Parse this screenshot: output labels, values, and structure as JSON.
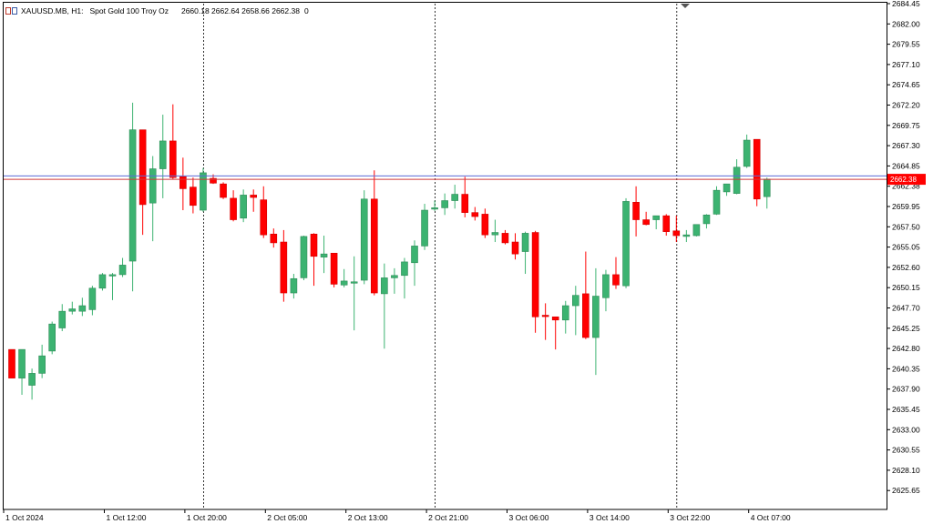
{
  "header": {
    "symbol": "XAUUSD.MB, H1:",
    "description": "Spot Gold 100 Troy Oz",
    "ohlc": "2660.18 2662.64 2658.66 2662.38",
    "volume": "0"
  },
  "colors": {
    "bull": "#3cb371",
    "bear": "#ff0000",
    "wick_bull": "#3cb371",
    "wick_bear": "#ff0000",
    "bid_line": "#d13a3a",
    "ask_line": "#5b6bd6",
    "price_tag_bg": "#ff0000",
    "period_sep": "#000000",
    "axis": "#000000"
  },
  "chart_data": {
    "type": "candlestick",
    "timeframe": "H1",
    "y_ticks": [
      "2684.45",
      "2682.00",
      "2679.55",
      "2677.10",
      "2674.65",
      "2672.20",
      "2669.75",
      "2667.30",
      "2664.85",
      "2662.38",
      "2659.95",
      "2657.50",
      "2655.05",
      "2652.60",
      "2650.15",
      "2647.70",
      "2645.25",
      "2642.80",
      "2640.35",
      "2637.90",
      "2635.45",
      "2633.00",
      "2630.55",
      "2628.10",
      "2625.65"
    ],
    "ylim": [
      2623.3,
      2684.45
    ],
    "x_labels": [
      "1 Oct 2024",
      "1 Oct 12:00",
      "1 Oct 20:00",
      "2 Oct 05:00",
      "2 Oct 13:00",
      "2 Oct 21:00",
      "3 Oct 06:00",
      "3 Oct 14:00",
      "3 Oct 22:00",
      "4 Oct 07:00"
    ],
    "x_label_candle_index": [
      0,
      10,
      18,
      26,
      34,
      42,
      50,
      58,
      66,
      74
    ],
    "period_separator_candle_index": [
      19,
      42,
      66
    ],
    "current_price": "2662.38",
    "bid": 2662.38,
    "ask": 2662.8,
    "candles": [
      {
        "o": 2641.0,
        "h": 2641.0,
        "l": 2637.4,
        "c": 2637.4
      },
      {
        "o": 2637.4,
        "h": 2641.0,
        "l": 2635.3,
        "c": 2641.0
      },
      {
        "o": 2636.5,
        "h": 2638.6,
        "l": 2634.7,
        "c": 2638.0
      },
      {
        "o": 2638.0,
        "h": 2641.6,
        "l": 2637.4,
        "c": 2640.2
      },
      {
        "o": 2640.8,
        "h": 2644.5,
        "l": 2640.4,
        "c": 2644.2
      },
      {
        "o": 2643.7,
        "h": 2646.7,
        "l": 2643.3,
        "c": 2645.8
      },
      {
        "o": 2645.8,
        "h": 2647.0,
        "l": 2645.4,
        "c": 2646.1
      },
      {
        "o": 2645.8,
        "h": 2647.5,
        "l": 2645.2,
        "c": 2646.5
      },
      {
        "o": 2646.0,
        "h": 2649.0,
        "l": 2645.3,
        "c": 2648.7
      },
      {
        "o": 2648.7,
        "h": 2650.6,
        "l": 2648.4,
        "c": 2650.4
      },
      {
        "o": 2650.4,
        "h": 2650.6,
        "l": 2647.2,
        "c": 2650.4
      },
      {
        "o": 2650.4,
        "h": 2652.5,
        "l": 2650.1,
        "c": 2651.6
      },
      {
        "o": 2652.1,
        "h": 2672.0,
        "l": 2648.3,
        "c": 2668.6
      },
      {
        "o": 2668.6,
        "h": 2668.6,
        "l": 2655.4,
        "c": 2659.2
      },
      {
        "o": 2659.4,
        "h": 2665.3,
        "l": 2654.6,
        "c": 2663.7
      },
      {
        "o": 2663.7,
        "h": 2670.5,
        "l": 2660.0,
        "c": 2667.2
      },
      {
        "o": 2667.2,
        "h": 2671.8,
        "l": 2662.4,
        "c": 2662.6
      },
      {
        "o": 2662.7,
        "h": 2665.1,
        "l": 2658.5,
        "c": 2661.2
      },
      {
        "o": 2661.4,
        "h": 2662.6,
        "l": 2658.1,
        "c": 2659.1
      },
      {
        "o": 2658.5,
        "h": 2663.8,
        "l": 2658.3,
        "c": 2663.2
      },
      {
        "o": 2662.5,
        "h": 2663.0,
        "l": 2661.8,
        "c": 2661.9
      },
      {
        "o": 2661.8,
        "h": 2662.0,
        "l": 2659.9,
        "c": 2660.1
      },
      {
        "o": 2660.0,
        "h": 2661.0,
        "l": 2657.1,
        "c": 2657.3
      },
      {
        "o": 2657.5,
        "h": 2661.1,
        "l": 2657.0,
        "c": 2660.4
      },
      {
        "o": 2660.4,
        "h": 2661.1,
        "l": 2658.3,
        "c": 2660.1
      },
      {
        "o": 2659.8,
        "h": 2661.5,
        "l": 2655.0,
        "c": 2655.4
      },
      {
        "o": 2655.5,
        "h": 2656.2,
        "l": 2653.8,
        "c": 2654.4
      },
      {
        "o": 2654.5,
        "h": 2656.0,
        "l": 2647.0,
        "c": 2648.1
      },
      {
        "o": 2648.1,
        "h": 2650.5,
        "l": 2647.4,
        "c": 2649.9
      },
      {
        "o": 2650.0,
        "h": 2655.3,
        "l": 2649.7,
        "c": 2655.2
      },
      {
        "o": 2655.5,
        "h": 2655.6,
        "l": 2649.0,
        "c": 2652.7
      },
      {
        "o": 2652.6,
        "h": 2655.3,
        "l": 2650.6,
        "c": 2653.0
      },
      {
        "o": 2653.1,
        "h": 2653.1,
        "l": 2648.8,
        "c": 2649.2
      },
      {
        "o": 2649.1,
        "h": 2651.1,
        "l": 2648.8,
        "c": 2649.6
      },
      {
        "o": 2649.5,
        "h": 2652.7,
        "l": 2643.4,
        "c": 2649.5
      },
      {
        "o": 2649.7,
        "h": 2661.0,
        "l": 2649.2,
        "c": 2659.9
      },
      {
        "o": 2659.9,
        "h": 2663.5,
        "l": 2647.8,
        "c": 2648.1
      },
      {
        "o": 2648.0,
        "h": 2651.8,
        "l": 2641.1,
        "c": 2650.0
      },
      {
        "o": 2650.0,
        "h": 2651.2,
        "l": 2648.0,
        "c": 2650.3
      },
      {
        "o": 2650.3,
        "h": 2652.5,
        "l": 2647.4,
        "c": 2652.0
      },
      {
        "o": 2651.9,
        "h": 2654.7,
        "l": 2649.0,
        "c": 2654.0
      },
      {
        "o": 2654.0,
        "h": 2659.3,
        "l": 2653.5,
        "c": 2658.5
      },
      {
        "o": 2658.8,
        "h": 2659.7,
        "l": 2658.4,
        "c": 2658.8
      },
      {
        "o": 2658.8,
        "h": 2660.6,
        "l": 2657.9,
        "c": 2659.7
      },
      {
        "o": 2659.7,
        "h": 2661.7,
        "l": 2658.7,
        "c": 2660.5
      },
      {
        "o": 2660.5,
        "h": 2662.7,
        "l": 2657.6,
        "c": 2658.2
      },
      {
        "o": 2658.2,
        "h": 2658.9,
        "l": 2657.2,
        "c": 2657.7
      },
      {
        "o": 2658.0,
        "h": 2658.7,
        "l": 2655.0,
        "c": 2655.4
      },
      {
        "o": 2655.4,
        "h": 2657.3,
        "l": 2654.5,
        "c": 2655.7
      },
      {
        "o": 2655.6,
        "h": 2656.0,
        "l": 2654.2,
        "c": 2654.4
      },
      {
        "o": 2654.5,
        "h": 2655.6,
        "l": 2652.3,
        "c": 2653.0
      },
      {
        "o": 2653.3,
        "h": 2655.8,
        "l": 2650.5,
        "c": 2655.6
      },
      {
        "o": 2655.7,
        "h": 2655.9,
        "l": 2643.1,
        "c": 2645.1
      },
      {
        "o": 2645.3,
        "h": 2646.8,
        "l": 2642.2,
        "c": 2645.2
      },
      {
        "o": 2645.1,
        "h": 2645.1,
        "l": 2641.0,
        "c": 2644.7
      },
      {
        "o": 2644.7,
        "h": 2647.1,
        "l": 2643.0,
        "c": 2646.5
      },
      {
        "o": 2646.5,
        "h": 2649.0,
        "l": 2642.8,
        "c": 2647.8
      },
      {
        "o": 2648.0,
        "h": 2653.3,
        "l": 2642.3,
        "c": 2642.5
      },
      {
        "o": 2642.5,
        "h": 2651.2,
        "l": 2637.8,
        "c": 2647.7
      },
      {
        "o": 2647.5,
        "h": 2651.0,
        "l": 2645.8,
        "c": 2650.4
      },
      {
        "o": 2650.4,
        "h": 2652.6,
        "l": 2648.6,
        "c": 2649.1
      },
      {
        "o": 2649.0,
        "h": 2660.0,
        "l": 2648.7,
        "c": 2659.6
      },
      {
        "o": 2659.5,
        "h": 2661.5,
        "l": 2655.2,
        "c": 2657.3
      },
      {
        "o": 2657.3,
        "h": 2658.3,
        "l": 2656.6,
        "c": 2656.7
      },
      {
        "o": 2657.3,
        "h": 2657.8,
        "l": 2656.1,
        "c": 2657.8
      },
      {
        "o": 2657.8,
        "h": 2658.0,
        "l": 2655.3,
        "c": 2655.8
      },
      {
        "o": 2655.9,
        "h": 2657.8,
        "l": 2654.5,
        "c": 2655.3
      },
      {
        "o": 2655.2,
        "h": 2656.0,
        "l": 2654.5,
        "c": 2655.4
      },
      {
        "o": 2655.3,
        "h": 2656.7,
        "l": 2655.2,
        "c": 2656.7
      },
      {
        "o": 2656.8,
        "h": 2658.0,
        "l": 2656.2,
        "c": 2657.9
      },
      {
        "o": 2658.0,
        "h": 2661.5,
        "l": 2657.9,
        "c": 2661.0
      },
      {
        "o": 2660.8,
        "h": 2661.8,
        "l": 2660.3,
        "c": 2661.8
      },
      {
        "o": 2660.6,
        "h": 2664.9,
        "l": 2660.5,
        "c": 2663.9
      },
      {
        "o": 2664.0,
        "h": 2668.0,
        "l": 2663.8,
        "c": 2667.3
      },
      {
        "o": 2667.4,
        "h": 2667.4,
        "l": 2659.0,
        "c": 2659.9
      },
      {
        "o": 2660.2,
        "h": 2662.6,
        "l": 2658.7,
        "c": 2662.4
      }
    ]
  }
}
